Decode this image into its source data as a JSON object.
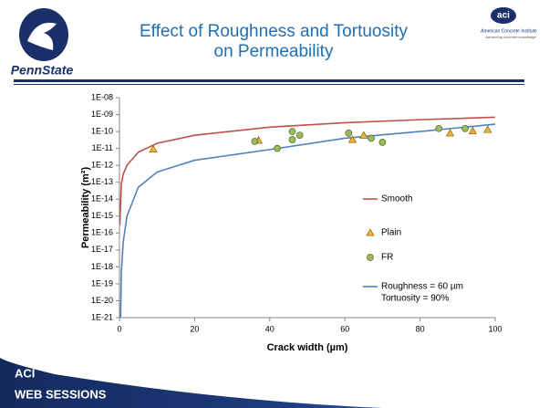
{
  "slide": {
    "title": [
      "Effect of Roughness and Tortuosity",
      "on Permeability"
    ],
    "logo_left": "PennState",
    "logo_right": "aci",
    "logo_right_sub": [
      "American Concrete Institute",
      "Advancing concrete knowledge"
    ],
    "footer": [
      "ACI",
      "WEB SESSIONS"
    ]
  },
  "chart_data": {
    "type": "scatter",
    "y_label": "Permeability (m²)",
    "x_label": "Crack width (µm)",
    "log_y": true,
    "grid": false,
    "legend": "right",
    "xlim": [
      0,
      100
    ],
    "xticks": [
      0,
      20,
      40,
      60,
      80,
      100
    ],
    "ylim": [
      1e-21,
      1e-08
    ],
    "yticks": [
      {
        "value": 1e-08,
        "label": "1E-08"
      },
      {
        "value": 1e-09,
        "label": "1E-09"
      },
      {
        "value": 1e-10,
        "label": "1E-10"
      },
      {
        "value": 1e-11,
        "label": "1E-11"
      },
      {
        "value": 1e-12,
        "label": "1E-12"
      },
      {
        "value": 1e-13,
        "label": "1E-13"
      },
      {
        "value": 1e-14,
        "label": "1E-14"
      },
      {
        "value": 1e-15,
        "label": "1E-15"
      },
      {
        "value": 1e-16,
        "label": "1E-16"
      },
      {
        "value": 1e-17,
        "label": "1E-17"
      },
      {
        "value": 1e-18,
        "label": "1E-18"
      },
      {
        "value": 1e-19,
        "label": "1E-19"
      },
      {
        "value": 1e-20,
        "label": "1E-20"
      },
      {
        "value": 1e-21,
        "label": "1E-21"
      }
    ],
    "series": [
      {
        "name": [
          "Smooth"
        ],
        "kind": "line",
        "color": "#c0504d",
        "x": [
          0.1,
          0.5,
          1,
          2,
          5,
          10,
          20,
          40,
          60,
          80,
          100
        ],
        "values": [
          3e-16,
          8e-14,
          3e-13,
          1e-12,
          6e-12,
          2e-11,
          6e-11,
          1.8e-10,
          3.3e-10,
          5e-10,
          7e-10
        ]
      },
      {
        "name": [
          "Plain"
        ],
        "kind": "triangle",
        "color": "#f5b236",
        "x": [
          9,
          37,
          62,
          65,
          88,
          94,
          98
        ],
        "values": [
          9e-12,
          3e-11,
          3.3e-11,
          6e-11,
          8e-11,
          1.1e-10,
          1.3e-10
        ]
      },
      {
        "name": [
          "FR"
        ],
        "kind": "circle",
        "color": "#9bbb59",
        "x": [
          36,
          42,
          46,
          46,
          48,
          61,
          67,
          70,
          85,
          92
        ],
        "values": [
          2.6e-11,
          1e-11,
          1e-10,
          3.3e-11,
          6e-11,
          8e-11,
          4e-11,
          2.3e-11,
          1.5e-10,
          1.5e-10
        ]
      },
      {
        "name": [
          "Roughness = 60 µm",
          "Tortuosity = 90%"
        ],
        "kind": "line",
        "color": "#4f81bd",
        "x": [
          0.3,
          0.5,
          1,
          2,
          5,
          10,
          20,
          42,
          60,
          80,
          100
        ],
        "values": [
          1e-21,
          5e-19,
          3e-17,
          1e-15,
          5e-14,
          4e-13,
          2e-12,
          1e-11,
          4e-11,
          1e-10,
          2.7e-10
        ]
      }
    ]
  }
}
